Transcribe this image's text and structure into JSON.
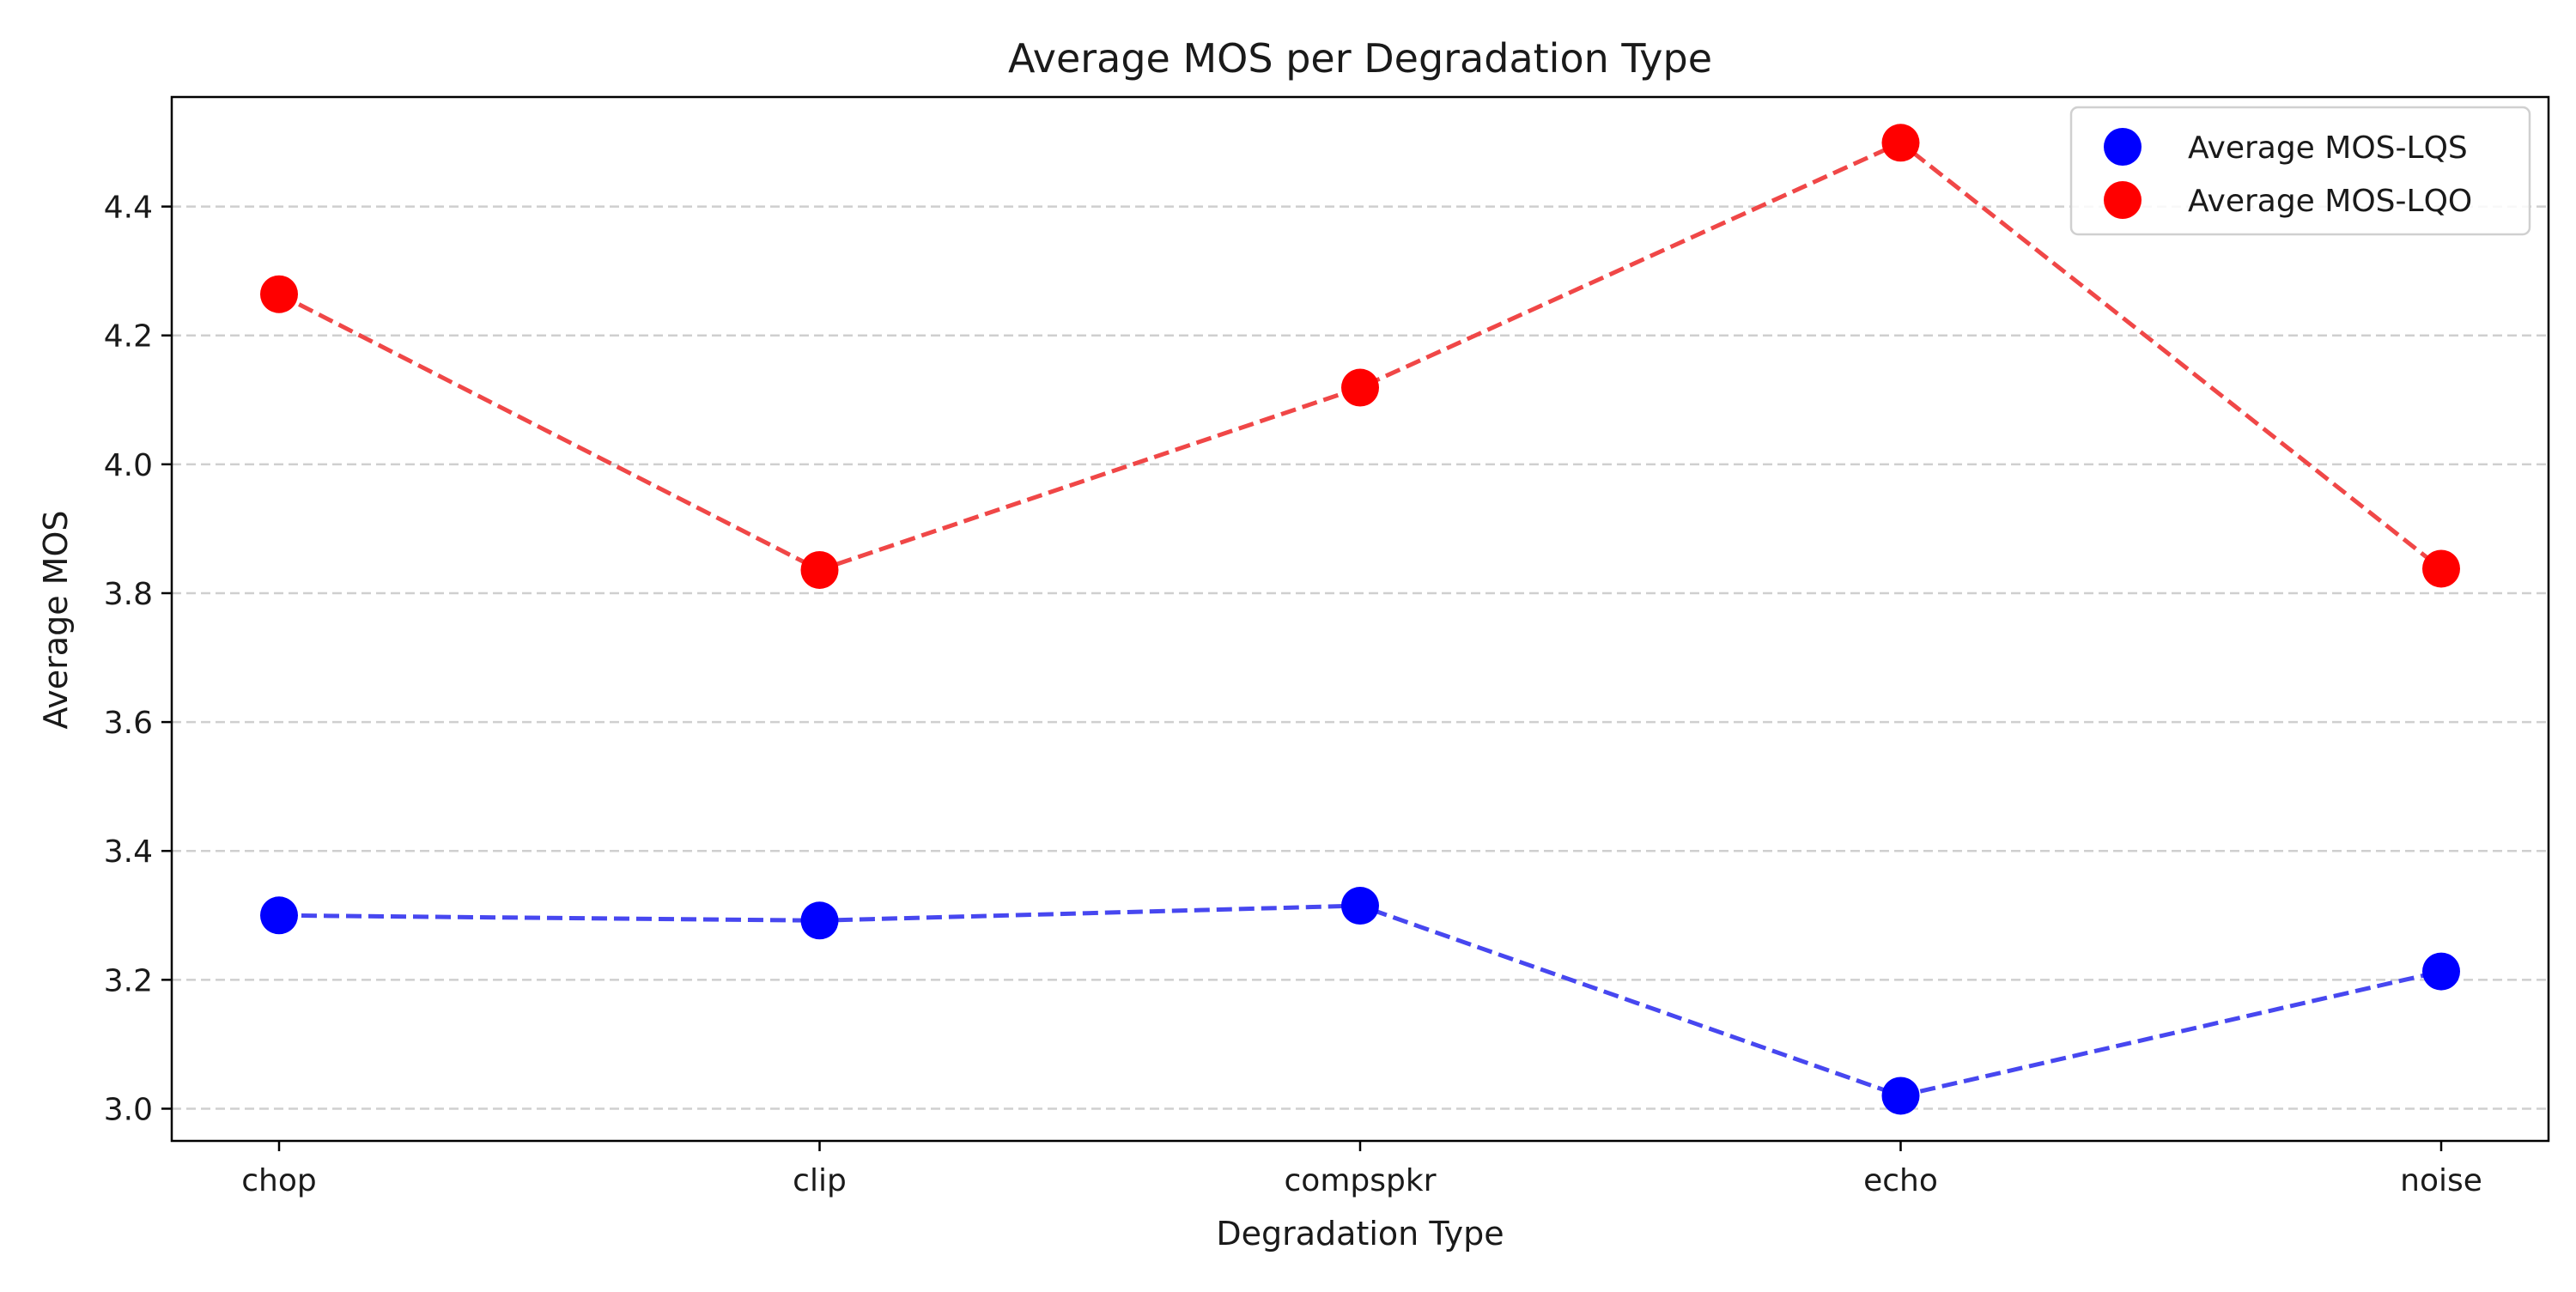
{
  "chart_data": {
    "type": "line",
    "title": "Average MOS per Degradation Type",
    "xlabel": "Degradation Type",
    "ylabel": "Average MOS",
    "categories": [
      "chop",
      "clip",
      "compspkr",
      "echo",
      "noise"
    ],
    "ylim": [
      2.95,
      4.57
    ],
    "yticks": [
      "3.0",
      "3.2",
      "3.4",
      "3.6",
      "3.8",
      "4.0",
      "4.2",
      "4.4"
    ],
    "grid": "horizontal dashed",
    "legend_position": "top-right",
    "series": [
      {
        "name": "Average MOS-LQS",
        "color": "#0000ff",
        "line_style": "dashed",
        "values": [
          3.3,
          3.292,
          3.315,
          3.02,
          3.213
        ]
      },
      {
        "name": "Average MOS-LQO",
        "color": "#ff0000",
        "line_style": "dashed",
        "values": [
          4.264,
          3.836,
          4.119,
          4.499,
          3.838
        ]
      }
    ]
  }
}
